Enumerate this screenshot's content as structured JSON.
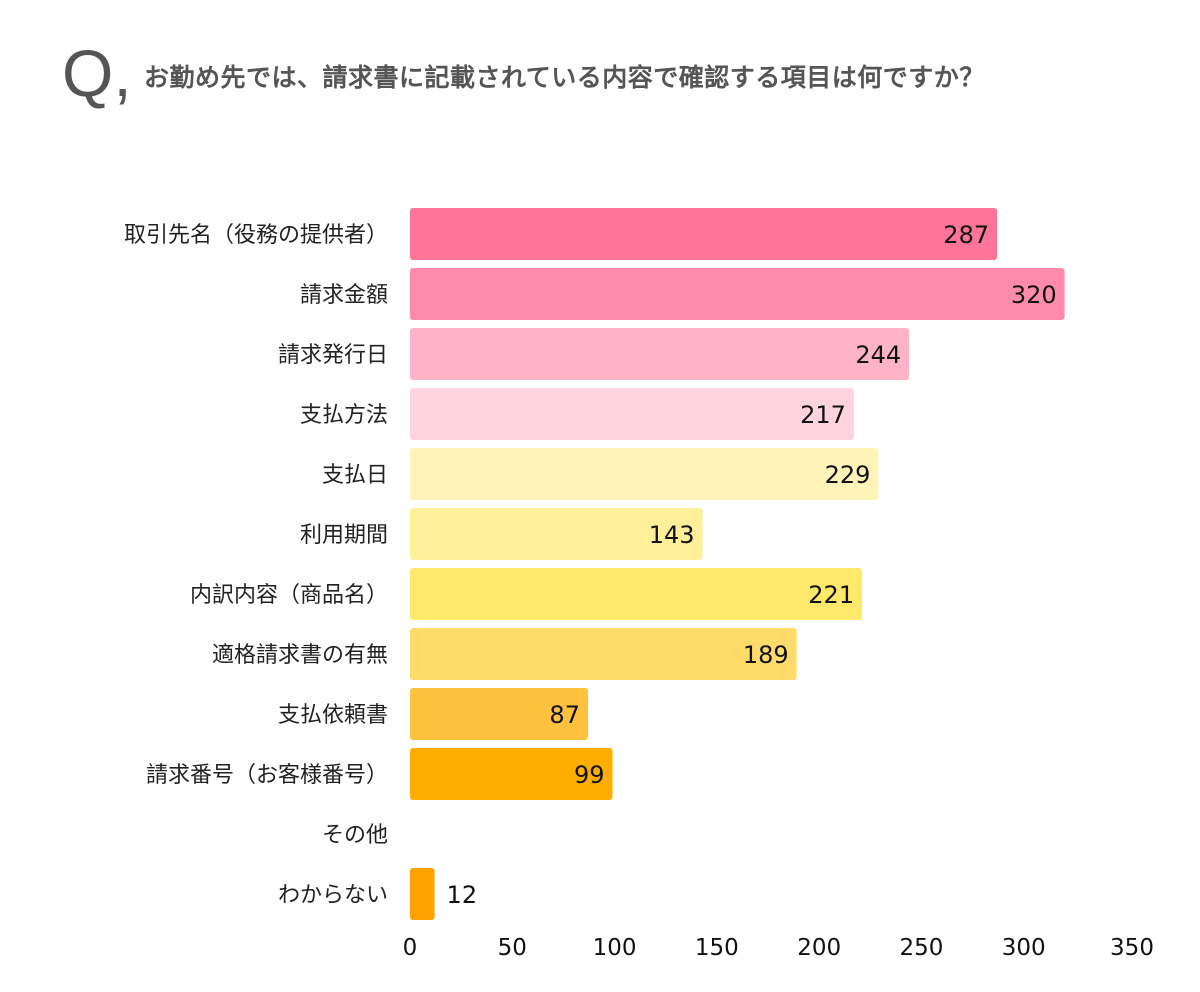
{
  "chart_data": {
    "type": "bar",
    "orientation": "horizontal",
    "question_mark": "Q,",
    "title": "お勤め先では、請求書に記載されている内容で確認する項目は何ですか？",
    "categories": [
      "取引先名（役務の提供者）",
      "請求金額",
      "請求発行日",
      "支払方法",
      "支払日",
      "利用期間",
      "内訳内容（商品名）",
      "適格請求書の有無",
      "支払依頼書",
      "請求番号（お客様番号）",
      "その他",
      "わからない"
    ],
    "values": [
      287,
      320,
      244,
      217,
      229,
      143,
      221,
      189,
      87,
      99,
      null,
      12
    ],
    "colors": [
      "#ff7597",
      "#ff8aa9",
      "#ffb3c8",
      "#ffd4e0",
      "#fff3b8",
      "#ffef99",
      "#ffe96b",
      "#ffdb6a",
      "#ffc23f",
      "#ffae00",
      "#ffae00",
      "#ffa200"
    ],
    "xlim": [
      0,
      350
    ],
    "xticks": [
      0,
      50,
      100,
      150,
      200,
      250,
      300,
      350
    ],
    "xlabel": "",
    "ylabel": "",
    "grid": false,
    "legend": "none"
  }
}
